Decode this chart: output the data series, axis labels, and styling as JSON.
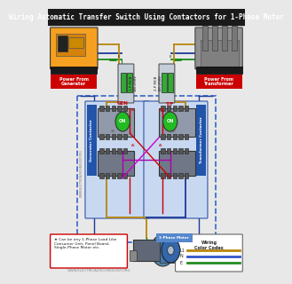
{
  "title": "Wiring Automatic Transfer Switch Using Contactors for 1-Phase Motor",
  "title_fontsize": 5.5,
  "bg_color": "#e8e8e8",
  "title_bg": "#1a1a1a",
  "title_fg": "#ffffff",
  "colors": {
    "L1": "#b8860b",
    "N": "#1a3a9a",
    "E": "#1a8a1a",
    "red": "#cc0000",
    "magenta": "#cc00cc",
    "pink": "#ff66aa",
    "blue_wire": "#3355cc",
    "green_wire": "#228b22",
    "orange_wire": "#cc6600",
    "gray": "#888888",
    "black": "#111111",
    "white": "#ffffff",
    "power_gen_bg": "#cc0000",
    "power_tf_bg": "#cc0000",
    "motor_label_bg": "#5588cc",
    "mcb_body": "#c8d0dc",
    "mcb_handle": "#33aa33",
    "contactor_bg": "#c0cce0",
    "contactor_border": "#3355aa",
    "contactor_body": "#8090a8",
    "label_bg_gen": "#2255aa",
    "label_bg_tf": "#2255aa",
    "outer_box": "#3366cc",
    "note_border": "#cc0000",
    "legend_border": "#666666"
  },
  "website": "WWW.ELECTRICALTECHNOLOGY.ORG",
  "note_text": [
    "★ Can be any 1-Phase Load Like",
    "Consumer Unit, Panel Board,",
    "Single-Phase Motor etc."
  ],
  "legend_items": [
    {
      "label": "L1",
      "color": "#b8860b"
    },
    {
      "label": "N",
      "color": "#3355cc"
    },
    {
      "label": "E",
      "color": "#228b22"
    }
  ],
  "label_gen": "GEN",
  "label_tf": "T/F",
  "label_power_gen": "Power From\nGenerator",
  "label_power_tf": "Power From\nTransformer",
  "label_motor": "1-Phase Motor",
  "label_gen_contactor": "Generator Contactor",
  "label_tf_contactor": "Transformer Contactor",
  "mcb_label": "2-P MCB\n100-250V",
  "gen_image_color": "#f5a020",
  "tf_image_color": "#909090"
}
